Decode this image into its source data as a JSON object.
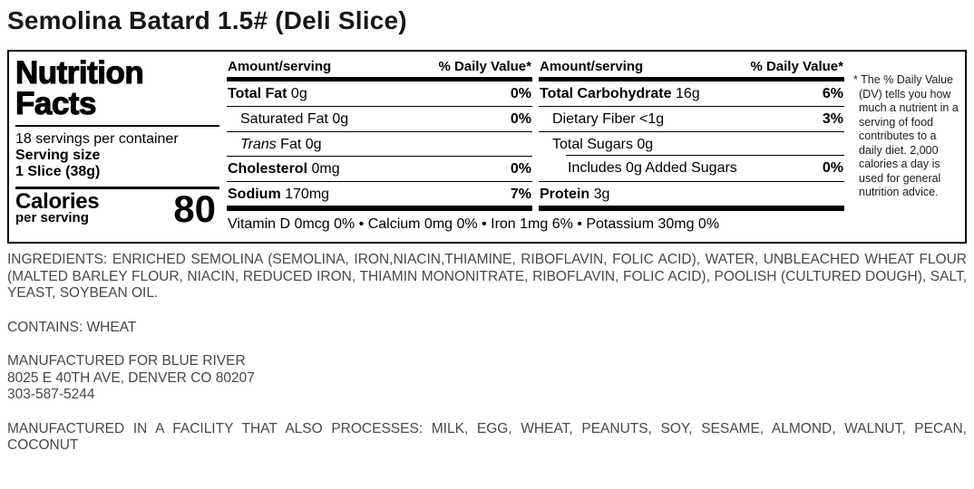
{
  "page_title": "Semolina Batard 1.5# (Deli Slice)",
  "label": {
    "title_line1": "Nutrition",
    "title_line2": "Facts",
    "servings_per_container": "18 servings per container",
    "serving_size_label": "Serving size",
    "serving_size_value": "1 Slice (38g)",
    "calories_label": "Calories",
    "calories_sub": "per serving",
    "calories_value": "80",
    "col1": {
      "header_amount": "Amount/serving",
      "header_dv": "% Daily Value*",
      "rows": [
        {
          "bold": "Total Fat",
          "rest": " 0g",
          "dv": "0%"
        },
        {
          "rest": "Saturated Fat 0g",
          "dv": "0%"
        },
        {
          "italic": "Trans",
          "rest": " Fat 0g",
          "dv": ""
        },
        {
          "bold": "Cholesterol",
          "rest": " 0mg",
          "dv": "0%"
        },
        {
          "bold": "Sodium",
          "rest": " 170mg",
          "dv": "7%"
        }
      ]
    },
    "col2": {
      "header_amount": "Amount/serving",
      "header_dv": "% Daily Value*",
      "rows": [
        {
          "bold": "Total Carbohydrate",
          "rest": " 16g",
          "dv": "6%"
        },
        {
          "rest": "Dietary Fiber <1g",
          "dv": "3%"
        },
        {
          "rest": "Total Sugars 0g",
          "dv": ""
        },
        {
          "rest": "Includes 0g Added Sugars",
          "dv": "0%"
        },
        {
          "bold": "Protein",
          "rest": " 3g",
          "dv": ""
        }
      ]
    },
    "micronutrients": "Vitamin D 0mcg 0% • Calcium 0mg 0% • Iron 1mg 6% • Potassium 30mg 0%",
    "footnote": "* The % Daily Value (DV) tells you how much a nutrient in a serving of food contributes to a daily diet. 2,000 calories a day is used for general nutrition advice."
  },
  "paragraphs": {
    "ingredients": "INGREDIENTS: ENRICHED SEMOLINA (SEMOLINA, IRON,NIACIN,THIAMINE, RIBOFLAVIN, FOLIC ACID), WATER, UNBLEACHED WHEAT FLOUR (MALTED BARLEY FLOUR, NIACIN, REDUCED IRON, THIAMIN MONONITRATE, RIBOFLAVIN, FOLIC ACID), POOLISH (CULTURED DOUGH), SALT, YEAST, SOYBEAN OIL.",
    "contains": "CONTAINS: WHEAT",
    "manufactured_for": "MANUFACTURED FOR BLUE RIVER",
    "address": "8025 E 40TH AVE, DENVER CO 80207",
    "phone": "303-587-5244",
    "facility": "MANUFACTURED IN A FACILITY THAT ALSO PROCESSES: MILK, EGG, WHEAT, PEANUTS, SOY, SESAME, ALMOND, WALNUT, PECAN, COCONUT"
  }
}
